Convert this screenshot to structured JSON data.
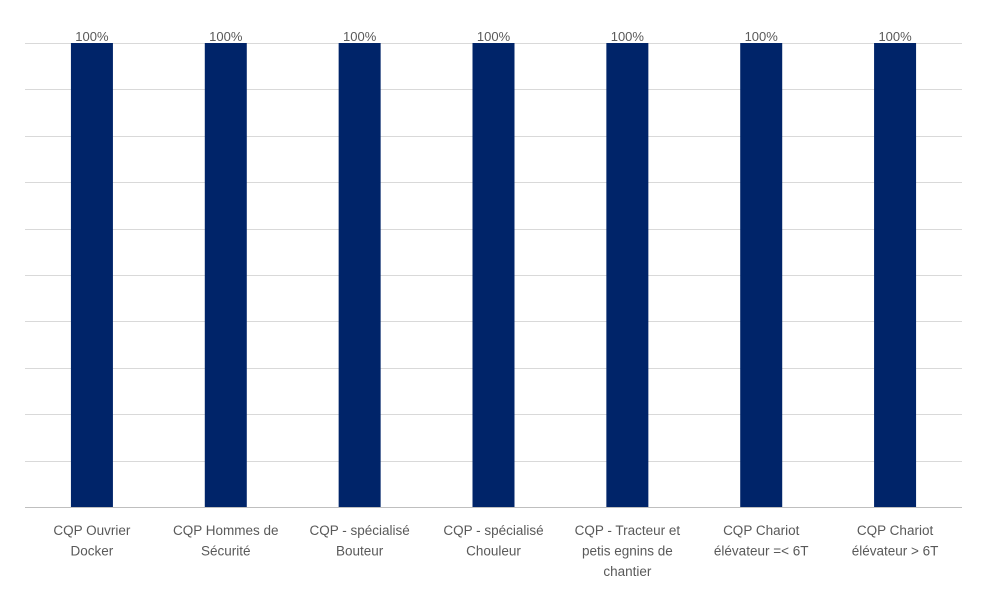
{
  "chart_data": {
    "type": "bar",
    "categories": [
      [
        "CQP Ouvrier",
        "Docker"
      ],
      [
        "CQP Hommes de",
        "Sécurité"
      ],
      [
        "CQP - spécialisé",
        "Bouteur"
      ],
      [
        "CQP - spécialisé",
        "Chouleur"
      ],
      [
        "CQP - Tracteur et",
        "petis egnins de",
        "chantier"
      ],
      [
        "CQP Chariot",
        "élévateur =< 6T"
      ],
      [
        "CQP Chariot",
        "élévateur > 6T"
      ]
    ],
    "values": [
      1,
      1,
      1,
      1,
      1,
      1,
      1
    ],
    "data_labels": [
      "100%",
      "100%",
      "100%",
      "100%",
      "100%",
      "100%",
      "100%"
    ],
    "ylim": [
      0,
      1
    ],
    "grid": true,
    "gridline_count": 10,
    "title": "",
    "xlabel": "",
    "ylabel": "",
    "legend": "none",
    "bar_color": "#002469",
    "grid_color": "#d9d9d9",
    "label_color": "#595959"
  }
}
